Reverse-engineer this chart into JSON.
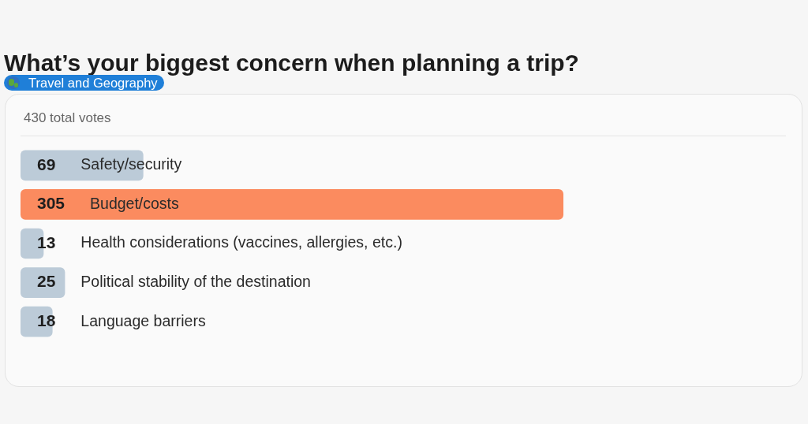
{
  "chart_data": {
    "type": "bar",
    "orientation": "horizontal",
    "title": "What’s your biggest concern when planning a trip?",
    "subtitle": "Travel and Geography",
    "annotations": [
      "430 total votes"
    ],
    "categories": [
      "Safety/security",
      "Budget/costs",
      "Health considerations (vaccines, allergies, etc.)",
      "Political stability of the destination",
      "Language barriers"
    ],
    "values": [
      69,
      305,
      13,
      25,
      18
    ],
    "colors": [
      "#bccbd8",
      "#fb8b5f",
      "#bccbd8",
      "#bccbd8",
      "#bccbd8"
    ],
    "data_labels": true
  }
}
